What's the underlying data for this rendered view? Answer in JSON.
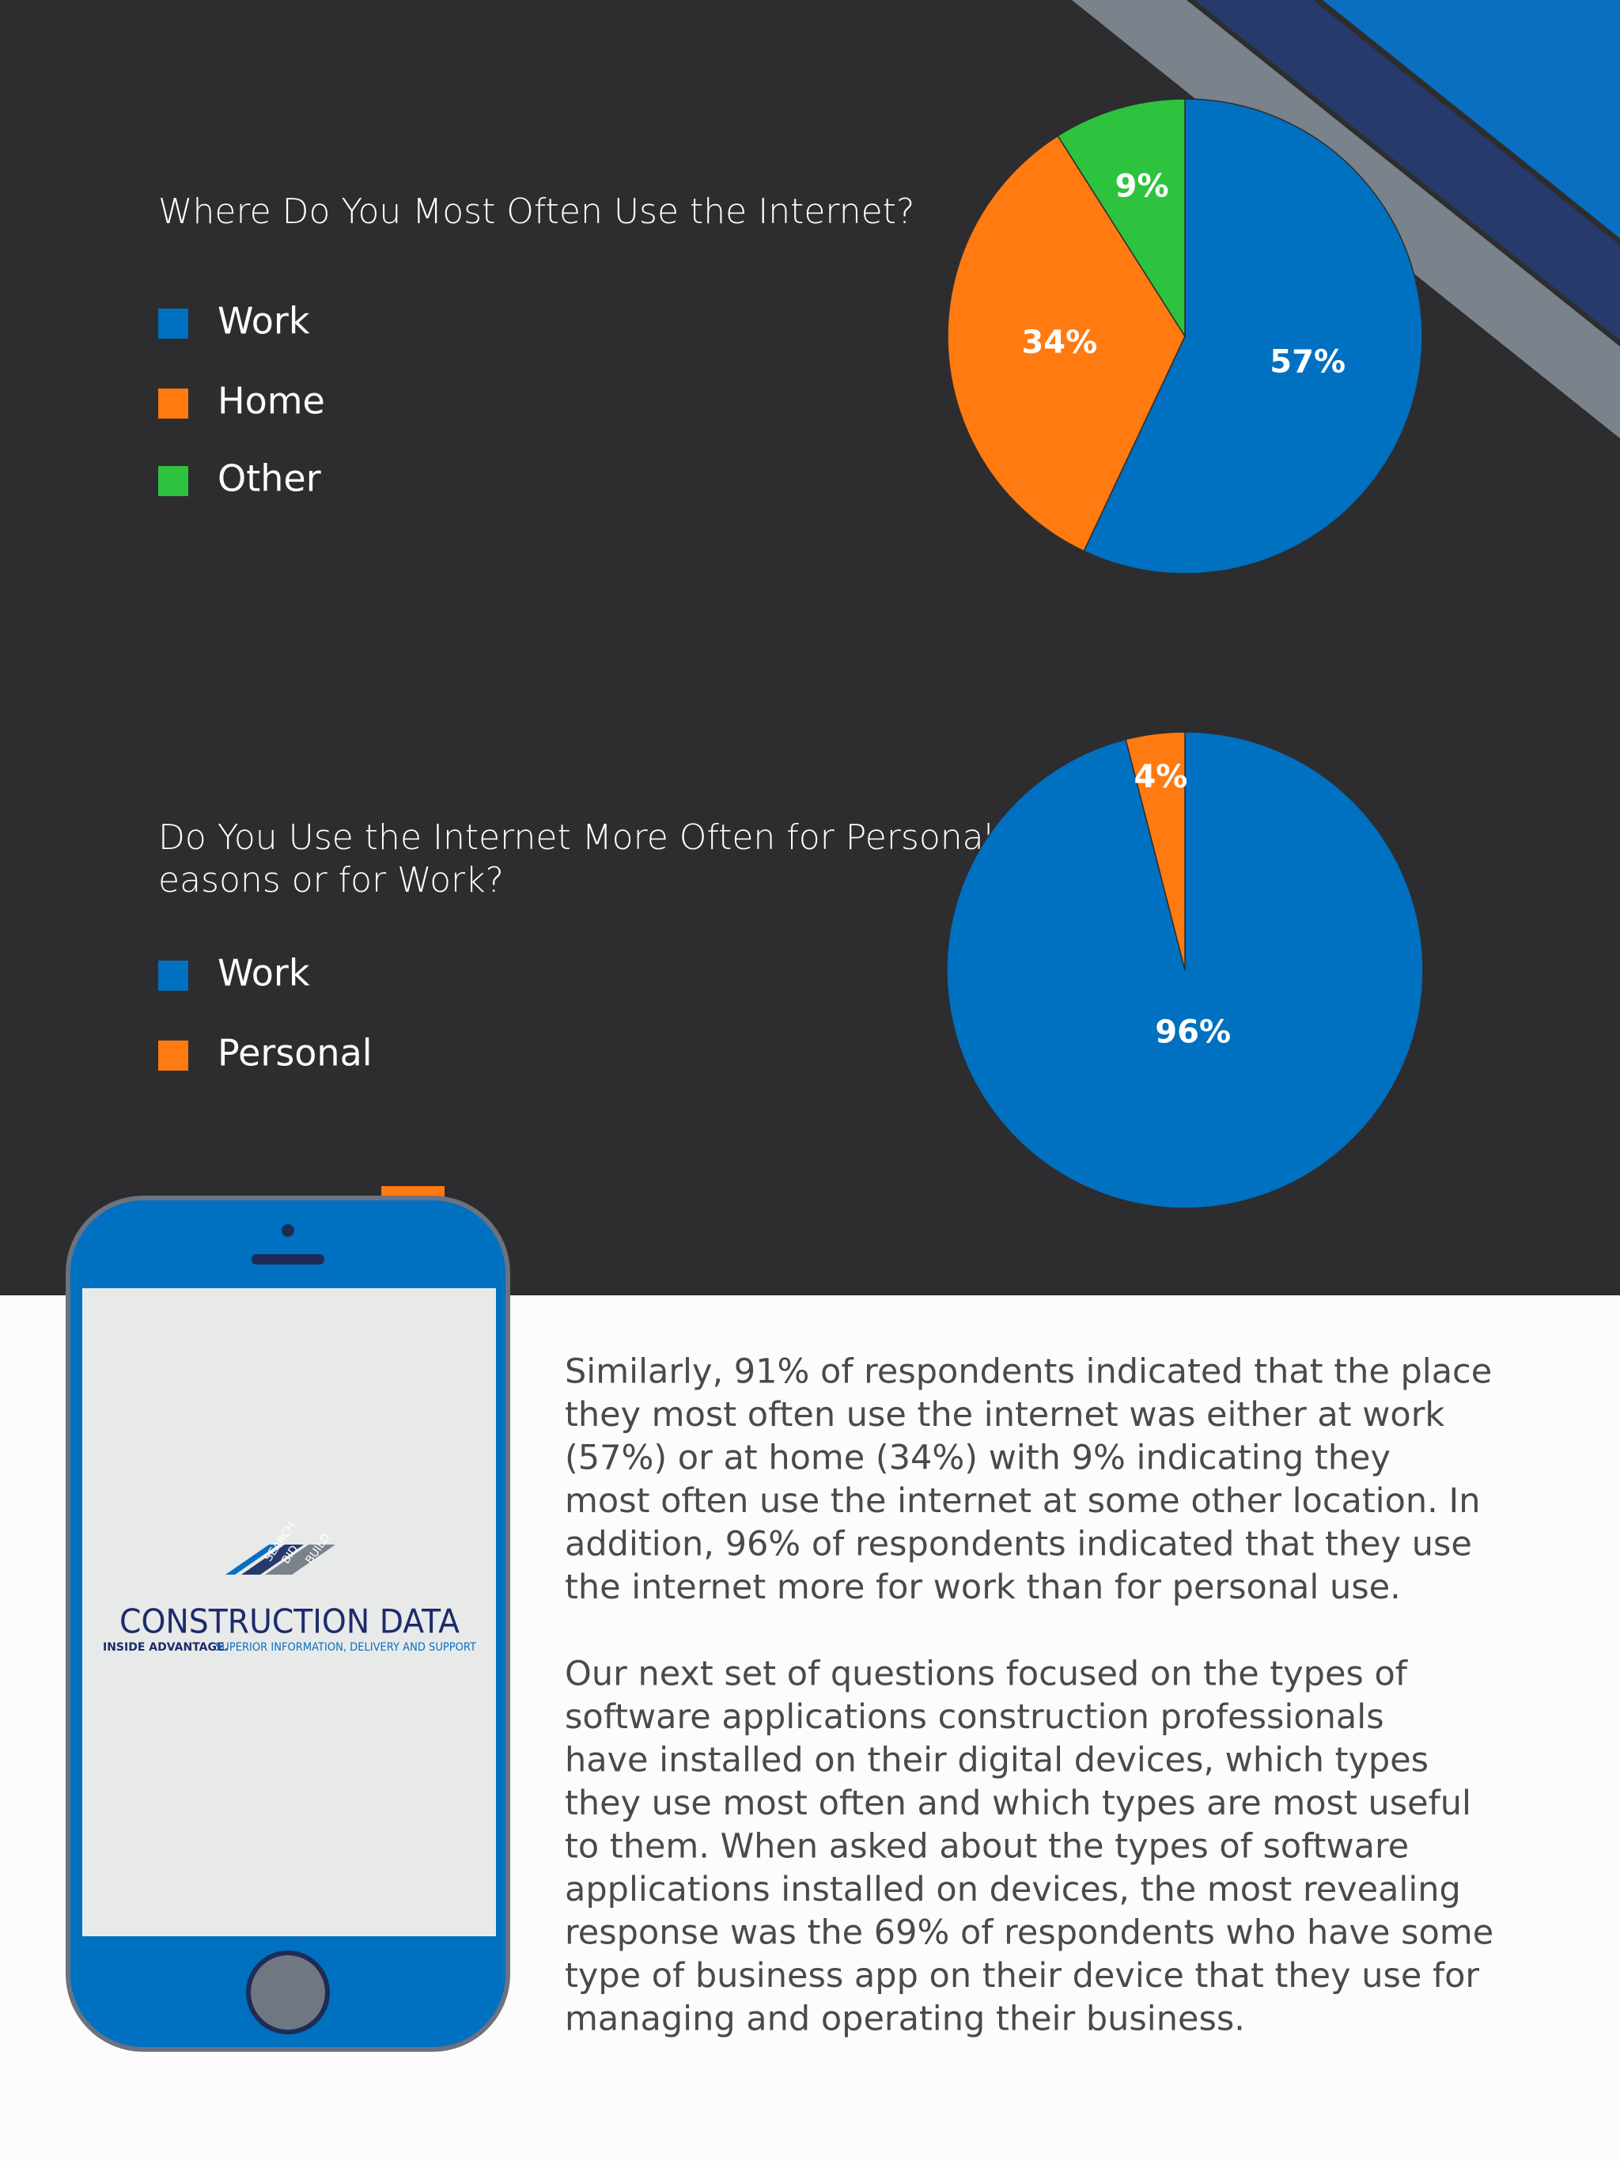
{
  "chart_data": [
    {
      "type": "pie",
      "title": "Where Do You Most Often Use the Internet?",
      "categories": [
        "Work",
        "Home",
        "Other"
      ],
      "values": [
        57,
        34,
        9
      ],
      "value_labels": [
        "57%",
        "34%",
        "9%"
      ],
      "colors": [
        "#0070c0",
        "#ff7a10",
        "#2dc33f"
      ]
    },
    {
      "type": "pie",
      "title": "Do You Use the Internet More Often for Personal Reasons or for Work?",
      "categories": [
        "Work",
        "Personal"
      ],
      "values": [
        96,
        4
      ],
      "value_labels": [
        "96%",
        "4%"
      ],
      "colors": [
        "#0070c0",
        "#ff7a10"
      ]
    }
  ],
  "text": {
    "paragraphs": [
      [
        "Similarly, 91% of respondents indicated that the place",
        "they most often use the internet was either at work",
        "(57%) or at home (34%) with 9% indicating they",
        "most often use the internet at some other location. In",
        "addition, 96% of respondents indicated that they use",
        "the internet more for work than for personal use."
      ],
      [
        "Our next set of questions focused on the types of",
        "software applications construction professionals",
        "have installed on their digital devices, which types",
        "they use most often and which types are most useful",
        "to them. When asked about the types of software",
        "applications installed on devices, the most revealing",
        "response was the 69% of respondents who have some",
        "type of business app on their device that they use for",
        "managing and operating their business."
      ]
    ]
  },
  "logo": {
    "stripes": [
      "SEARCH",
      "BID",
      "BUILD"
    ],
    "name": "CONSTRUCTION DATA",
    "tagline_bold": "INSIDE ADVANTAGE.",
    "tagline": "SUPERIOR INFORMATION, DELIVERY AND SUPPORT"
  }
}
